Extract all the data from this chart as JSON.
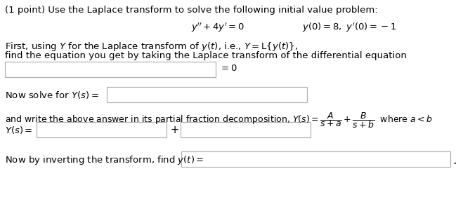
{
  "title_text": "(1 point) Use the Laplace transform to solve the following initial value problem:",
  "equation_line": "$y^{\\prime\\prime} + 4y^{\\prime} = 0$",
  "initial_conditions": "$y(0) = 8,\\ y^{\\prime}(0) = -1$",
  "instruction1": "First, using $Y$ for the Laplace transform of $y(t)$, i.e., $Y = \\mathrm{L}\\{y(t)\\}$,",
  "instruction2": "find the equation you get by taking the Laplace transform of the differential equation",
  "equals_zero": "$= 0$",
  "now_solve": "Now solve for $Y(s) =$",
  "partial_frac1": "and write the above answer in its partial fraction decomposition, $Y(s) = \\dfrac{A}{s+a} + \\dfrac{B}{s+b}$  where $a < b$",
  "Ys_label": "$Y(s) =$",
  "plus_sign": "+",
  "invert_text": "Now by inverting the transform, find $y(t) =$",
  "period": ".",
  "bg_color": "#ffffff",
  "box_edge": "#aaaaaa",
  "text_color": "#000000",
  "font_size": 9.5
}
